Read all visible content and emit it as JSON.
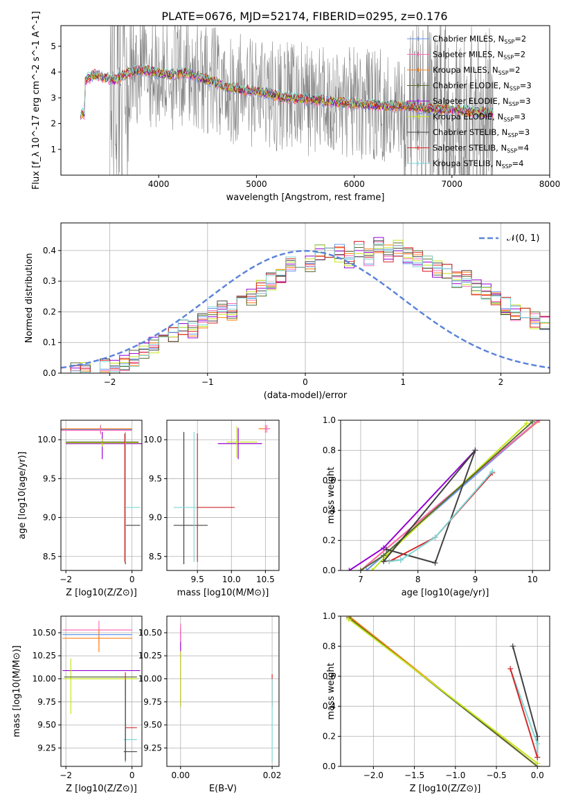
{
  "figure": {
    "suptitle": "PLATE=0676, MJD=52174, FIBERID=0295, z=0.176"
  },
  "colors": {
    "Chabrier MILES": "#6495ed",
    "Salpeter MILES": "#ff69b4",
    "Kroupa MILES": "#ff7f0e",
    "Chabrier ELODIE": "#556b2f",
    "Salpeter ELODIE": "#9400d3",
    "Kroupa ELODIE": "#c5e51a",
    "Chabrier STELIB": "#404040",
    "Salpeter STELIB": "#d62728",
    "Kroupa STELIB": "#7ed6d6",
    "data": "#808080",
    "gaussian": "#5b84d9"
  },
  "chart_data": [
    {
      "id": "spectrum",
      "type": "line",
      "title": "",
      "xlabel": "wavelength [Angstrom, rest frame]",
      "ylabel": "Flux [f_λ 10^-17 erg cm^-2 s^-1 A^-1]",
      "xlim": [
        3000,
        8000
      ],
      "ylim": [
        0,
        5.8
      ],
      "xticks": [
        "4000",
        "5000",
        "6000",
        "7000",
        "8000"
      ],
      "yticks": [
        "1",
        "2",
        "3",
        "4",
        "5"
      ],
      "legend_position": "right",
      "legend": [
        {
          "name": "Chabrier MILES",
          "nssp": "2"
        },
        {
          "name": "Salpeter MILES",
          "nssp": "2"
        },
        {
          "name": "Kroupa MILES",
          "nssp": "2"
        },
        {
          "name": "Chabrier ELODIE",
          "nssp": "3"
        },
        {
          "name": "Salpeter ELODIE",
          "nssp": "3"
        },
        {
          "name": "Kroupa ELODIE",
          "nssp": "3"
        },
        {
          "name": "Chabrier STELIB",
          "nssp": "3"
        },
        {
          "name": "Salpeter STELIB",
          "nssp": "4"
        },
        {
          "name": "Kroupa STELIB",
          "nssp": "4"
        }
      ],
      "data_range": [
        3500,
        7420
      ],
      "model_continuum": [
        [
          3250,
          3.7
        ],
        [
          3350,
          3.9
        ],
        [
          3450,
          3.8
        ],
        [
          3550,
          3.7
        ],
        [
          3650,
          3.9
        ],
        [
          3800,
          4.1
        ],
        [
          3950,
          4.0
        ],
        [
          4100,
          3.9
        ],
        [
          4300,
          3.95
        ],
        [
          4500,
          3.7
        ],
        [
          4700,
          3.4
        ],
        [
          4900,
          3.3
        ],
        [
          5100,
          3.2
        ],
        [
          5300,
          3.0
        ],
        [
          5500,
          2.95
        ],
        [
          5700,
          2.9
        ],
        [
          5900,
          2.8
        ],
        [
          6100,
          2.75
        ],
        [
          6300,
          2.7
        ],
        [
          6500,
          2.7
        ],
        [
          6700,
          2.6
        ],
        [
          6900,
          2.55
        ],
        [
          7100,
          2.5
        ],
        [
          7300,
          2.45
        ],
        [
          7420,
          2.4
        ]
      ]
    },
    {
      "id": "residuals",
      "type": "histogram",
      "xlabel": "(data-model)/error",
      "ylabel": "Normed distribution",
      "xlim": [
        -2.5,
        2.5
      ],
      "ylim": [
        0,
        0.49
      ],
      "xticks": [
        "−2",
        "−1",
        "0",
        "1",
        "2"
      ],
      "yticks": [
        "0.0",
        "0.1",
        "0.2",
        "0.3",
        "0.4"
      ],
      "grid": true,
      "legend_position": "top-right",
      "legend_gaussian": "𝒩(0, 1)",
      "bin_width": 0.1,
      "bins_start": -2.5,
      "reference_hist": [
        0.0,
        0.01,
        0.01,
        0.01,
        0.02,
        0.02,
        0.03,
        0.05,
        0.07,
        0.09,
        0.11,
        0.12,
        0.15,
        0.14,
        0.17,
        0.19,
        0.21,
        0.2,
        0.24,
        0.25,
        0.28,
        0.3,
        0.32,
        0.35,
        0.37,
        0.36,
        0.39,
        0.38,
        0.39,
        0.37,
        0.4,
        0.38,
        0.42,
        0.39,
        0.41,
        0.38,
        0.37,
        0.36,
        0.34,
        0.33,
        0.3,
        0.31,
        0.28,
        0.27,
        0.25,
        0.22,
        0.2,
        0.19,
        0.17,
        0.16,
        0.14,
        0.13,
        0.11,
        0.1,
        0.09,
        0.08,
        0.08,
        0.07,
        0.06,
        0.05,
        0.05,
        0.04,
        0.03,
        0.03,
        0.02,
        0.02
      ]
    },
    {
      "id": "age-vs-Z",
      "type": "scatter",
      "xlabel": "Z [log10(Z/Z⊙)]",
      "ylabel": "age  [log10(age/yr)]",
      "xlim": [
        -2.15,
        0.3
      ],
      "ylim": [
        8.32,
        10.25
      ],
      "xticks": [
        "−2",
        "0"
      ],
      "yticks": [
        "8.5",
        "9.0",
        "9.5",
        "10.0"
      ],
      "grid": true
    },
    {
      "id": "age-vs-mass",
      "type": "scatter",
      "xlabel": "mass [log10(M/M⊙)]",
      "ylabel": "",
      "xlim": [
        9.05,
        10.7
      ],
      "ylim": [
        8.32,
        10.25
      ],
      "xticks": [
        "9.5",
        "10.0",
        "10.5"
      ],
      "yticks": [
        "8.5",
        "9.0",
        "9.5",
        "10.0"
      ],
      "grid": true
    },
    {
      "id": "weight-vs-age",
      "type": "line",
      "xlabel": "age  [log10(age/yr)]",
      "ylabel": "mass weight",
      "xlim": [
        6.65,
        10.3
      ],
      "ylim": [
        0,
        1.0
      ],
      "xticks": [
        "7",
        "8",
        "9",
        "10"
      ],
      "yticks": [
        "0.0",
        "0.2",
        "0.4",
        "0.6",
        "0.8",
        "1.0"
      ],
      "grid": true,
      "series": [
        {
          "key": "Kroupa MILES",
          "x": [
            7.0,
            10.12
          ],
          "y": [
            0.0,
            1.0
          ]
        },
        {
          "key": "Chabrier MILES",
          "x": [
            7.1,
            10.1
          ],
          "y": [
            0.0,
            1.0
          ]
        },
        {
          "key": "Salpeter MILES",
          "x": [
            7.0,
            10.1
          ],
          "y": [
            0.0,
            1.0
          ]
        },
        {
          "key": "Salpeter ELODIE",
          "x": [
            6.8,
            7.4,
            9.0
          ],
          "y": [
            0.0,
            0.15,
            0.8
          ]
        },
        {
          "key": "Kroupa ELODIE",
          "x": [
            7.2,
            7.45,
            9.9
          ],
          "y": [
            0.0,
            0.1,
            0.98
          ]
        },
        {
          "key": "Chabrier ELODIE",
          "x": [
            7.0,
            7.4,
            10.0
          ],
          "y": [
            0.0,
            0.1,
            0.99
          ]
        },
        {
          "key": "Chabrier STELIB",
          "x": [
            7.45,
            8.3,
            9.0,
            7.4,
            7.7
          ],
          "y": [
            0.14,
            0.05,
            0.8,
            0.06,
            0.07
          ]
        },
        {
          "key": "Salpeter STELIB",
          "x": [
            7.5,
            8.3,
            9.3
          ],
          "y": [
            0.06,
            0.22,
            0.65
          ]
        },
        {
          "key": "Kroupa STELIB",
          "x": [
            7.5,
            7.7,
            8.3,
            9.3
          ],
          "y": [
            0.06,
            0.07,
            0.22,
            0.66
          ]
        }
      ]
    },
    {
      "id": "mass-vs-Z",
      "type": "scatter",
      "xlabel": "Z [log10(Z/Z⊙)]",
      "ylabel": "mass [log10(M/M⊙)]",
      "xlim": [
        -2.15,
        0.3
      ],
      "ylim": [
        9.05,
        10.68
      ],
      "xticks": [
        "−2",
        "0"
      ],
      "yticks": [
        "9.25",
        "9.50",
        "9.75",
        "10.00",
        "10.25",
        "10.50"
      ],
      "grid": true
    },
    {
      "id": "mass-vs-ebv",
      "type": "scatter",
      "xlabel": "E(B-V)",
      "ylabel": "",
      "xlim": [
        -0.003,
        0.0215
      ],
      "ylim": [
        9.05,
        10.68
      ],
      "xticks": [
        "0.00",
        "0.02"
      ],
      "yticks": [
        "9.25",
        "9.50",
        "9.75",
        "10.00",
        "10.25",
        "10.50"
      ],
      "grid": true
    },
    {
      "id": "weight-vs-Z",
      "type": "line",
      "xlabel": "Z [log10(Z/Z⊙)]",
      "ylabel": "mass weight",
      "xlim": [
        -2.4,
        0.15
      ],
      "ylim": [
        0,
        1.0
      ],
      "xticks": [
        "−2.0",
        "−1.5",
        "−1.0",
        "−0.5",
        "0.0"
      ],
      "yticks": [
        "0.0",
        "0.2",
        "0.4",
        "0.6",
        "0.8",
        "1.0"
      ],
      "grid": true,
      "series": [
        {
          "key": "Salpeter STELIB",
          "x": [
            -2.3,
            0.0
          ],
          "y": [
            1.0,
            0.0
          ]
        },
        {
          "key": "Kroupa MILES",
          "x": [
            -2.3,
            0.0
          ],
          "y": [
            1.0,
            0.0
          ]
        },
        {
          "key": "Chabrier ELODIE",
          "x": [
            -2.3,
            0.0
          ],
          "y": [
            0.99,
            0.0
          ]
        },
        {
          "key": "Kroupa ELODIE",
          "x": [
            -2.3,
            0.0
          ],
          "y": [
            0.98,
            0.02
          ]
        },
        {
          "key": "Chabrier STELIB",
          "x": [
            -0.3,
            0.0,
            0.0
          ],
          "y": [
            0.8,
            0.2,
            0.06
          ]
        },
        {
          "key": "Kroupa STELIB",
          "x": [
            -0.33,
            0.0,
            0.0
          ],
          "y": [
            0.65,
            0.15,
            0.06
          ]
        },
        {
          "key": "Salpeter STELIB",
          "x": [
            -0.33,
            0.0
          ],
          "y": [
            0.65,
            0.06
          ]
        }
      ]
    }
  ]
}
